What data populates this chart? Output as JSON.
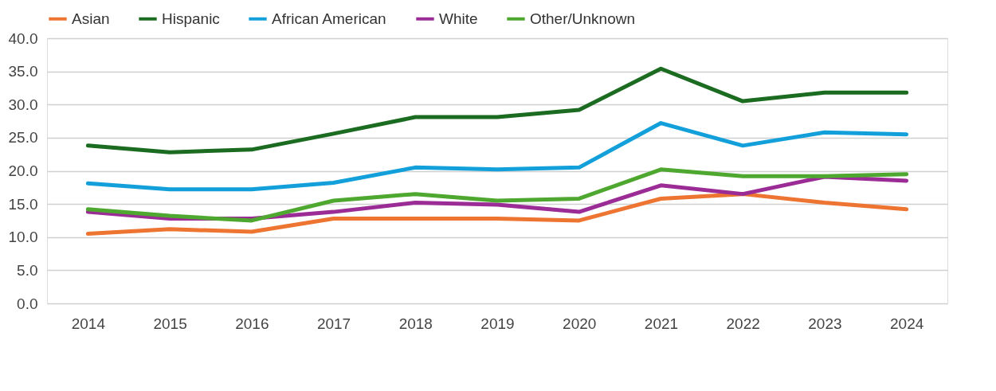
{
  "chart_data": {
    "type": "line",
    "categories": [
      "2014",
      "2015",
      "2016",
      "2017",
      "2018",
      "2019",
      "2020",
      "2021",
      "2022",
      "2023",
      "2024"
    ],
    "series": [
      {
        "name": "Asian",
        "color": "#ed7431",
        "values": [
          10.5,
          11.2,
          10.8,
          12.8,
          12.8,
          12.8,
          12.5,
          15.8,
          16.5,
          15.2,
          14.2
        ]
      },
      {
        "name": "Hispanic",
        "color": "#1b6b21",
        "values": [
          23.8,
          22.8,
          23.2,
          25.6,
          28.1,
          28.1,
          29.2,
          35.4,
          30.5,
          31.8,
          31.8
        ]
      },
      {
        "name": "African American",
        "color": "#13a0da",
        "values": [
          18.1,
          17.2,
          17.2,
          18.2,
          20.5,
          20.2,
          20.5,
          27.2,
          23.8,
          25.8,
          25.5
        ]
      },
      {
        "name": "White",
        "color": "#9b2c96",
        "values": [
          13.8,
          12.8,
          12.8,
          13.8,
          15.2,
          14.9,
          13.8,
          17.8,
          16.5,
          19.1,
          18.5
        ]
      },
      {
        "name": "Other/Unknown",
        "color": "#4ea72e",
        "values": [
          14.2,
          13.2,
          12.5,
          15.5,
          16.5,
          15.5,
          15.8,
          20.2,
          19.2,
          19.2,
          19.5
        ]
      }
    ],
    "ylim": [
      0,
      40
    ],
    "yticks": [
      {
        "value": 0,
        "label": "0.0"
      },
      {
        "value": 5,
        "label": "5.0"
      },
      {
        "value": 10,
        "label": "10.0"
      },
      {
        "value": 15,
        "label": "15.0"
      },
      {
        "value": 20,
        "label": "20.0"
      },
      {
        "value": 25,
        "label": "25.0"
      },
      {
        "value": 30,
        "label": "30.0"
      },
      {
        "value": 35,
        "label": "35.0"
      },
      {
        "value": 40,
        "label": "40.0"
      }
    ],
    "grid": "y",
    "legend": "top",
    "marker": "none",
    "line_style": "solid"
  }
}
